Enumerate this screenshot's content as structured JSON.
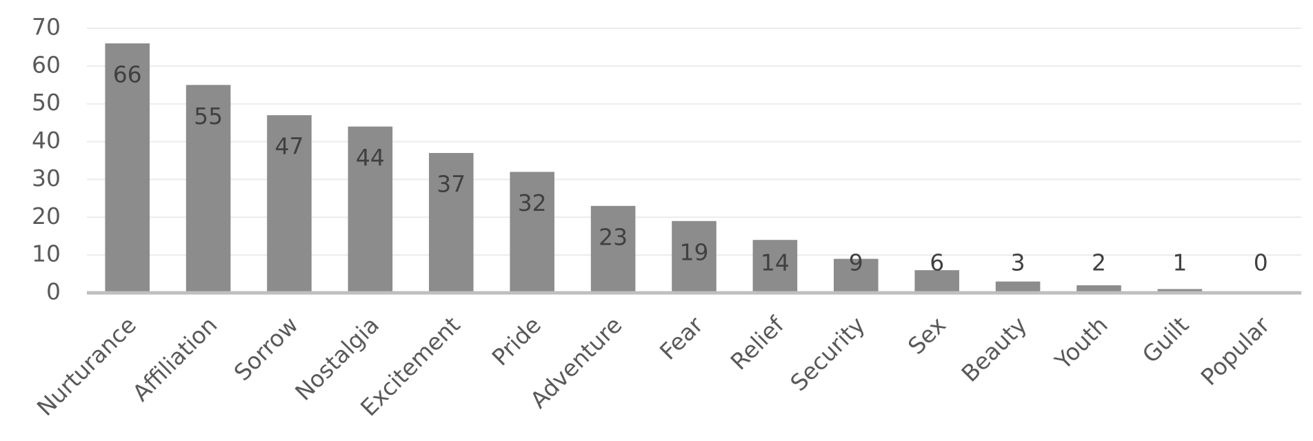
{
  "chart_data": {
    "type": "bar",
    "categories": [
      "Nurturance",
      "Affiliation",
      "Sorrow",
      "Nostalgia",
      "Excitement",
      "Pride",
      "Adventure",
      "Fear",
      "Relief",
      "Security",
      "Sex",
      "Beauty",
      "Youth",
      "Guilt",
      "Popular"
    ],
    "values": [
      66,
      55,
      47,
      44,
      37,
      32,
      23,
      19,
      14,
      9,
      6,
      3,
      2,
      1,
      0
    ],
    "color": "#8c8c8c",
    "ylim": [
      0,
      70
    ],
    "yticks": [
      0,
      10,
      20,
      30,
      40,
      50,
      60,
      70
    ],
    "grid": true
  }
}
